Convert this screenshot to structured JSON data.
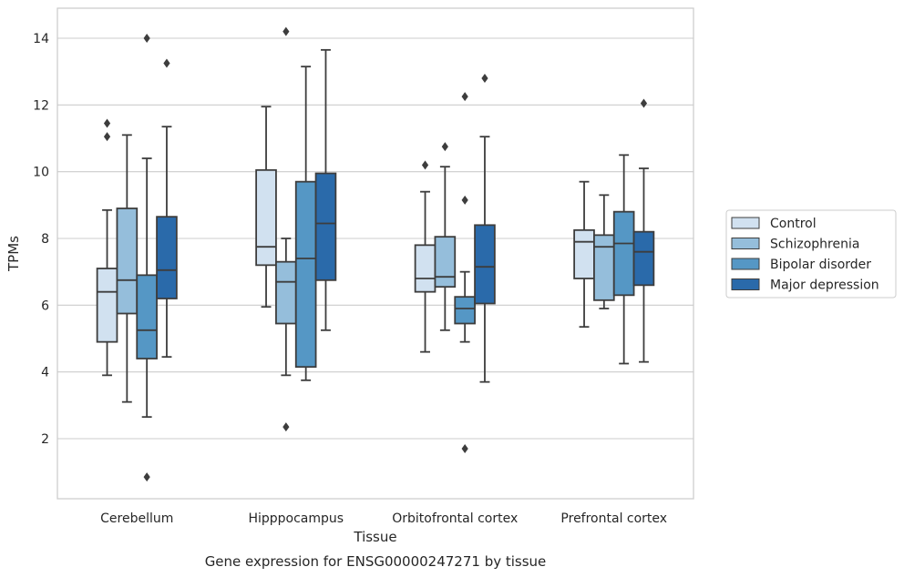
{
  "chart_data": {
    "type": "boxplot",
    "title": "",
    "caption": "Gene expression for ENSG00000247271 by tissue",
    "xlabel": "Tissue",
    "ylabel": "TPMs",
    "ylim": [
      0.2,
      14.9
    ],
    "yticks": [
      2,
      4,
      6,
      8,
      10,
      12,
      14
    ],
    "grid": "horizontal",
    "legend_position": "right",
    "categories": [
      "Cerebellum",
      "Hipppocampus",
      "Orbitofrontal cortex",
      "Prefrontal cortex"
    ],
    "series": [
      {
        "name": "Control",
        "color": "#d1e1f0",
        "boxes": [
          {
            "whislo": 3.9,
            "q1": 4.9,
            "med": 6.4,
            "q3": 7.1,
            "whishi": 8.85,
            "fliers": [
              11.45,
              11.05
            ]
          },
          {
            "whislo": 5.95,
            "q1": 7.2,
            "med": 7.75,
            "q3": 10.05,
            "whishi": 11.95,
            "fliers": []
          },
          {
            "whislo": 4.6,
            "q1": 6.4,
            "med": 6.8,
            "q3": 7.8,
            "whishi": 9.4,
            "fliers": [
              10.2
            ]
          },
          {
            "whislo": 5.35,
            "q1": 6.8,
            "med": 7.9,
            "q3": 8.25,
            "whishi": 9.7,
            "fliers": []
          }
        ]
      },
      {
        "name": "Schizophrenia",
        "color": "#95bedb",
        "boxes": [
          {
            "whislo": 3.1,
            "q1": 5.75,
            "med": 6.75,
            "q3": 8.9,
            "whishi": 11.1,
            "fliers": []
          },
          {
            "whislo": 3.9,
            "q1": 5.45,
            "med": 6.7,
            "q3": 7.3,
            "whishi": 8.0,
            "fliers": [
              14.2,
              2.35
            ]
          },
          {
            "whislo": 5.25,
            "q1": 6.55,
            "med": 6.85,
            "q3": 8.05,
            "whishi": 10.15,
            "fliers": [
              10.75
            ]
          },
          {
            "whislo": 5.9,
            "q1": 6.15,
            "med": 7.75,
            "q3": 8.1,
            "whishi": 9.3,
            "fliers": []
          }
        ]
      },
      {
        "name": "Bipolar disorder",
        "color": "#5597c5",
        "boxes": [
          {
            "whislo": 2.65,
            "q1": 4.4,
            "med": 5.25,
            "q3": 6.9,
            "whishi": 10.4,
            "fliers": [
              14.0,
              0.85
            ]
          },
          {
            "whislo": 3.75,
            "q1": 4.15,
            "med": 7.4,
            "q3": 9.7,
            "whishi": 13.15,
            "fliers": []
          },
          {
            "whislo": 4.9,
            "q1": 5.45,
            "med": 5.9,
            "q3": 6.25,
            "whishi": 7.0,
            "fliers": [
              12.25,
              9.15,
              1.7
            ]
          },
          {
            "whislo": 4.25,
            "q1": 6.3,
            "med": 7.85,
            "q3": 8.8,
            "whishi": 10.5,
            "fliers": []
          }
        ]
      },
      {
        "name": "Major depression",
        "color": "#2a6aaa",
        "boxes": [
          {
            "whislo": 4.45,
            "q1": 6.2,
            "med": 7.05,
            "q3": 8.65,
            "whishi": 11.35,
            "fliers": [
              13.25
            ]
          },
          {
            "whislo": 5.25,
            "q1": 6.75,
            "med": 8.45,
            "q3": 9.95,
            "whishi": 13.65,
            "fliers": []
          },
          {
            "whislo": 3.7,
            "q1": 6.05,
            "med": 7.15,
            "q3": 8.4,
            "whishi": 11.05,
            "fliers": [
              12.8
            ]
          },
          {
            "whislo": 4.3,
            "q1": 6.6,
            "med": 7.6,
            "q3": 8.2,
            "whishi": 10.1,
            "fliers": [
              12.05
            ]
          }
        ]
      }
    ]
  }
}
